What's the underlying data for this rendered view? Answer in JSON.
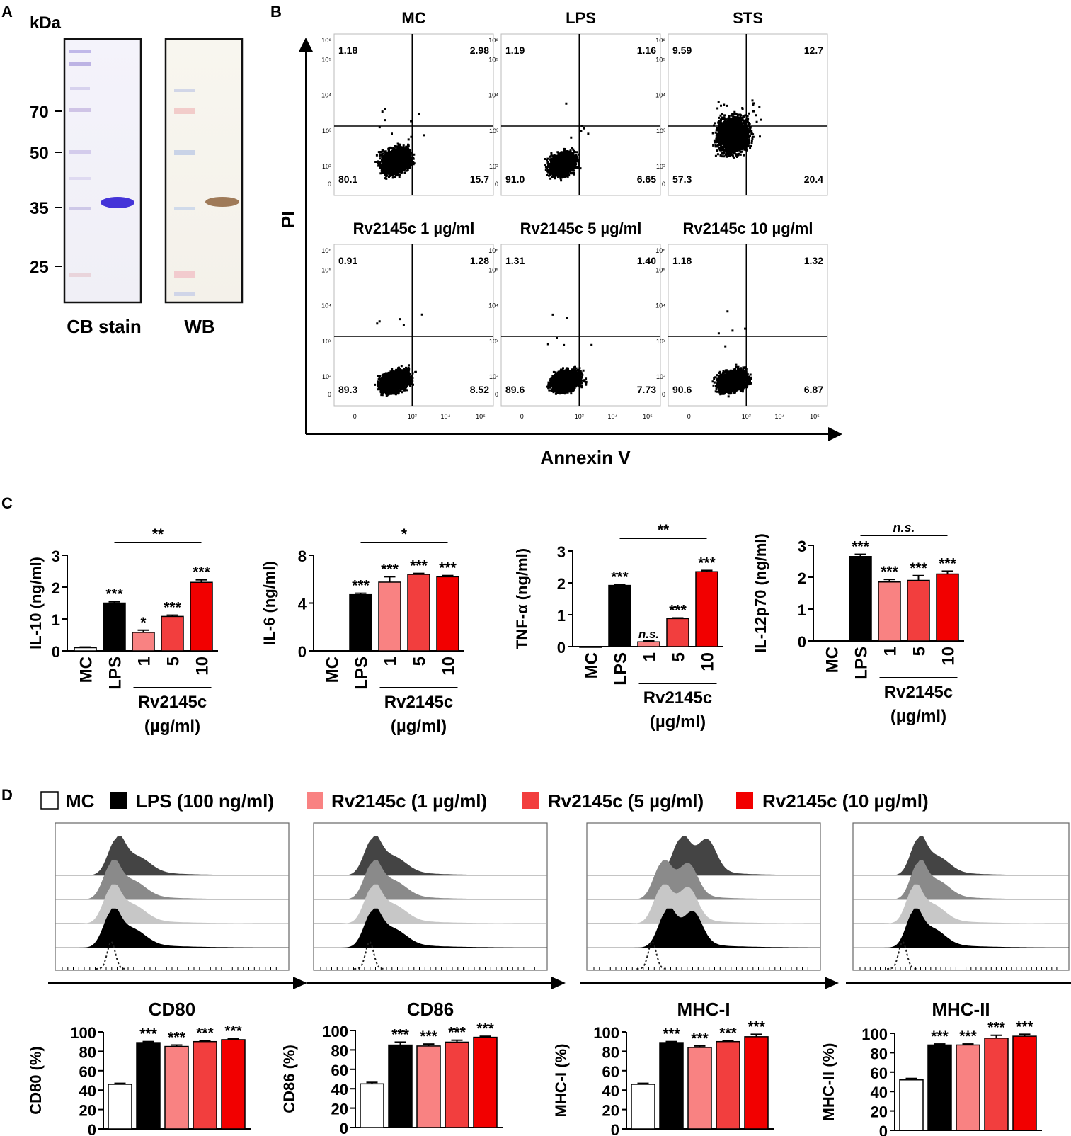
{
  "panel_letters": {
    "a": "A",
    "b": "B",
    "c": "C",
    "d": "D"
  },
  "panel_a": {
    "unit": "kDa",
    "markers": [
      "70",
      "50",
      "35",
      "25"
    ],
    "lanes": [
      "CB stain",
      "WB"
    ]
  },
  "panel_b": {
    "x_axis": "Annexin V",
    "y_axis": "PI",
    "tick_labels": {
      "t0": "0",
      "t2": "10²",
      "t3": "10³",
      "t4": "10⁴",
      "t5": "10⁵",
      "t6": "10⁶"
    },
    "plots": [
      {
        "title": "MC",
        "ul": "1.18",
        "ur": "2.98",
        "ll": "80.1",
        "lr": "15.7"
      },
      {
        "title": "LPS",
        "ul": "1.19",
        "ur": "1.16",
        "ll": "91.0",
        "lr": "6.65"
      },
      {
        "title": "STS",
        "ul": "9.59",
        "ur": "12.7",
        "ll": "57.3",
        "lr": "20.4"
      },
      {
        "title": "Rv2145c 1 µg/ml",
        "ul": "0.91",
        "ur": "1.28",
        "ll": "89.3",
        "lr": "8.52"
      },
      {
        "title": "Rv2145c 5 µg/ml",
        "ul": "1.31",
        "ur": "1.40",
        "ll": "89.6",
        "lr": "7.73"
      },
      {
        "title": "Rv2145c 10 µg/ml",
        "ul": "1.18",
        "ur": "1.32",
        "ll": "90.6",
        "lr": "6.87"
      }
    ]
  },
  "panel_c_common": {
    "categories": [
      "MC",
      "LPS",
      "1",
      "5",
      "10"
    ],
    "group_label": "Rv2145c",
    "group_unit": "(µg/ml)"
  },
  "panel_d": {
    "legend": [
      "MC",
      "LPS (100 ng/ml)",
      "Rv2145c (1 µg/ml)",
      "Rv2145c (5 µg/ml)",
      "Rv2145c (10 µg/ml)"
    ],
    "histogram_labels": [
      "CD80",
      "CD86",
      "MHC-I",
      "MHC-II"
    ]
  },
  "colors": {
    "MC": "#ffffff",
    "LPS": "#000000",
    "Rv1": "#f98282",
    "Rv5": "#f23e3e",
    "Rv10": "#f20000"
  },
  "chart_data": [
    {
      "id": "il10",
      "type": "bar",
      "ylabel": "IL-10 (ng/ml)",
      "ylim": [
        0,
        3
      ],
      "yticks": [
        "0",
        "1",
        "2",
        "3"
      ],
      "categories": [
        "MC",
        "LPS",
        "1",
        "5",
        "10"
      ],
      "values": [
        0.1,
        1.5,
        0.58,
        1.08,
        2.15
      ],
      "errors": [
        0.02,
        0.04,
        0.07,
        0.04,
        0.08
      ],
      "stars": [
        "",
        "***",
        "*",
        "***",
        "***"
      ],
      "bracket": "**"
    },
    {
      "id": "il6",
      "type": "bar",
      "ylabel": "IL-6 (ng/ml)",
      "ylim": [
        0,
        8
      ],
      "yticks": [
        "0",
        "4",
        "8"
      ],
      "categories": [
        "MC",
        "LPS",
        "1",
        "5",
        "10"
      ],
      "values": [
        0.0,
        4.7,
        5.75,
        6.4,
        6.2
      ],
      "errors": [
        0.0,
        0.12,
        0.45,
        0.08,
        0.1
      ],
      "stars": [
        "",
        "***",
        "***",
        "***",
        "***"
      ],
      "bracket": "*"
    },
    {
      "id": "tnf",
      "type": "bar",
      "ylabel": "TNF-α (ng/ml)",
      "ylim": [
        0,
        3
      ],
      "yticks": [
        "0",
        "1",
        "2",
        "3"
      ],
      "categories": [
        "MC",
        "LPS",
        "1",
        "5",
        "10"
      ],
      "values": [
        0.0,
        1.92,
        0.15,
        0.88,
        2.35
      ],
      "errors": [
        0.0,
        0.03,
        0.03,
        0.02,
        0.04
      ],
      "stars": [
        "",
        "***",
        "n.s.",
        "***",
        "***"
      ],
      "bracket": "**"
    },
    {
      "id": "il12",
      "type": "bar",
      "ylabel": "IL-12p70 (ng/ml)",
      "ylim": [
        0,
        3
      ],
      "yticks": [
        "0",
        "1",
        "2",
        "3"
      ],
      "categories": [
        "MC",
        "LPS",
        "1",
        "5",
        "10"
      ],
      "values": [
        0.0,
        2.65,
        1.85,
        1.9,
        2.1
      ],
      "errors": [
        0.0,
        0.07,
        0.08,
        0.15,
        0.09
      ],
      "stars": [
        "",
        "***",
        "***",
        "***",
        "***"
      ],
      "bracket": "n.s."
    },
    {
      "id": "cd80",
      "type": "bar",
      "ylabel": "CD80 (%)",
      "ylim": [
        0,
        100
      ],
      "yticks": [
        "0",
        "20",
        "40",
        "60",
        "80",
        "100"
      ],
      "categories": [
        "MC",
        "LPS",
        "1",
        "5",
        "10"
      ],
      "values": [
        46,
        89,
        85,
        90,
        92
      ],
      "errors": [
        1,
        1,
        1.5,
        1,
        1
      ],
      "stars": [
        "",
        "***",
        "***",
        "***",
        "***"
      ]
    },
    {
      "id": "cd86",
      "type": "bar",
      "ylabel": "CD86 (%)",
      "ylim": [
        0,
        100
      ],
      "yticks": [
        "0",
        "20",
        "40",
        "60",
        "80",
        "100"
      ],
      "categories": [
        "MC",
        "LPS",
        "1",
        "5",
        "10"
      ],
      "values": [
        45,
        85,
        84,
        88,
        93
      ],
      "errors": [
        1.5,
        3,
        2,
        2,
        1
      ],
      "stars": [
        "",
        "***",
        "***",
        "***",
        "***"
      ]
    },
    {
      "id": "mhc1",
      "type": "bar",
      "ylabel": "MHC-I (%)",
      "ylim": [
        0,
        100
      ],
      "yticks": [
        "0",
        "20",
        "40",
        "60",
        "80",
        "100"
      ],
      "categories": [
        "MC",
        "LPS",
        "1",
        "5",
        "10"
      ],
      "values": [
        46,
        89,
        84,
        90,
        95
      ],
      "errors": [
        1,
        1,
        1.5,
        1,
        2.5
      ],
      "stars": [
        "",
        "***",
        "***",
        "***",
        "***"
      ]
    },
    {
      "id": "mhc2",
      "type": "bar",
      "ylabel": "MHC-II (%)",
      "ylim": [
        0,
        100
      ],
      "yticks": [
        "0",
        "20",
        "40",
        "60",
        "80",
        "100"
      ],
      "categories": [
        "MC",
        "LPS",
        "1",
        "5",
        "10"
      ],
      "values": [
        52,
        88,
        88,
        95,
        97
      ],
      "errors": [
        1.5,
        1,
        1,
        3,
        2
      ],
      "stars": [
        "",
        "***",
        "***",
        "***",
        "***"
      ]
    }
  ]
}
